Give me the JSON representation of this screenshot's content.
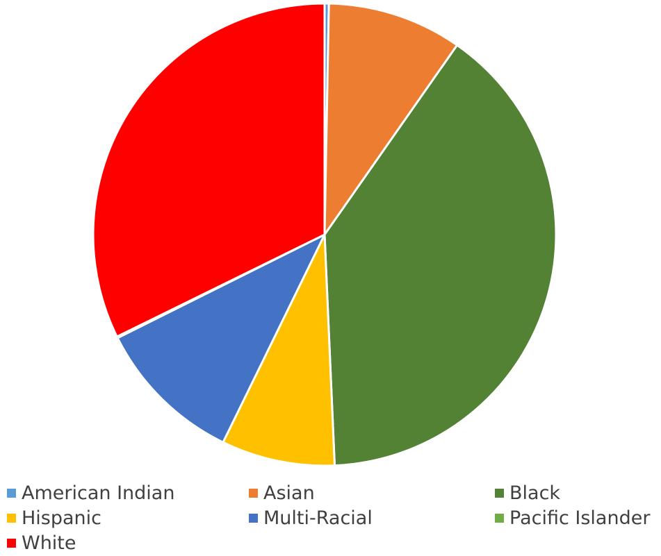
{
  "chart_data": {
    "type": "pie",
    "title": "",
    "categories": [
      "American Indian",
      "Asian",
      "Black",
      "Hispanic",
      "Multi-Racial",
      "Pacific Islander",
      "White"
    ],
    "values": [
      0.3,
      9.5,
      40.0,
      8.0,
      10.5,
      0.1,
      32.6
    ],
    "colors": [
      "#5B9BD5",
      "#ED7D31",
      "#548235",
      "#FFC000",
      "#4472C4",
      "#70AD47",
      "#FF0000"
    ],
    "legend": {
      "position": "bottom",
      "entries": [
        "American Indian",
        "Asian",
        "Black",
        "Hispanic",
        "Multi-Racial",
        "Pacific Islander",
        "White"
      ]
    }
  }
}
